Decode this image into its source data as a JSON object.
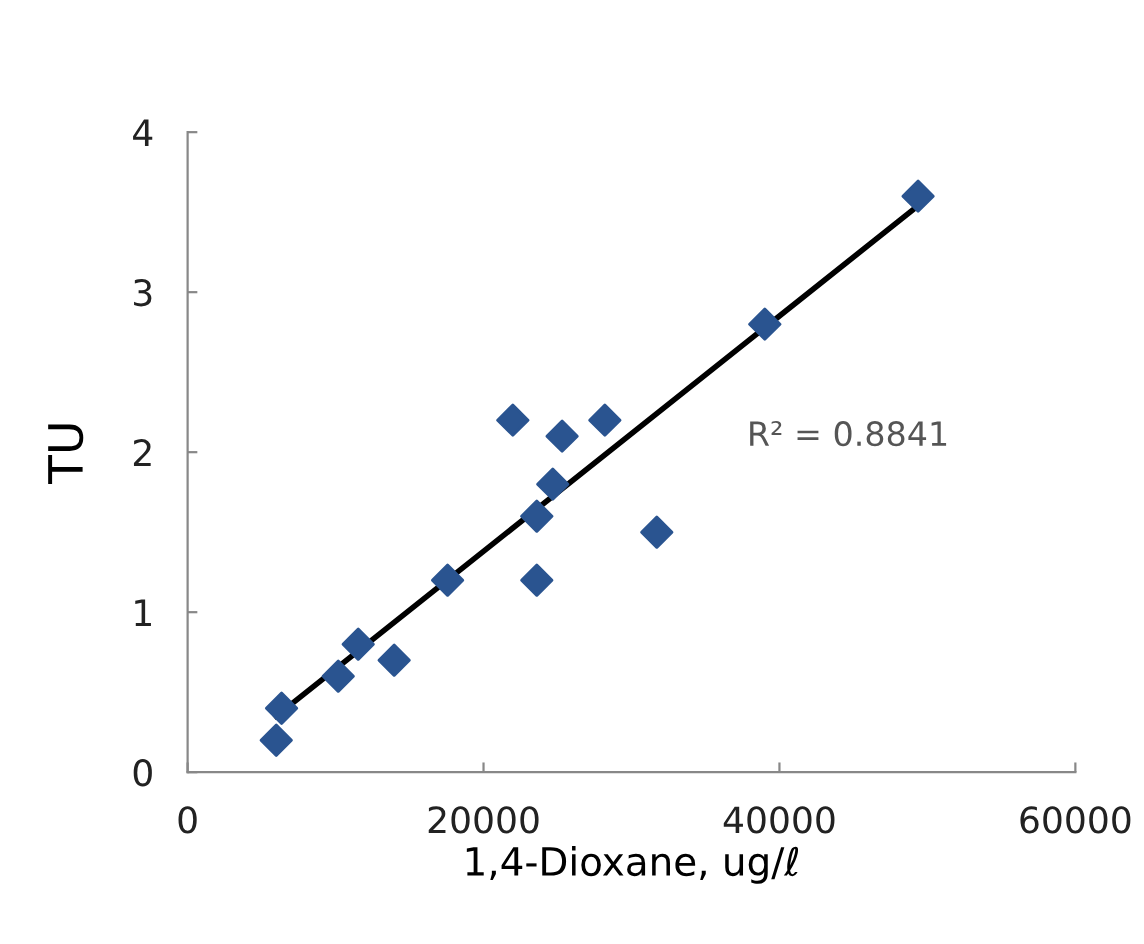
{
  "chart_data": {
    "type": "scatter",
    "xlabel": "1,4-Dioxane, ug/ℓ",
    "ylabel": "TU",
    "x": [
      5990,
      6350,
      10180,
      11530,
      13960,
      17570,
      21980,
      23600,
      23600,
      24680,
      25310,
      28200,
      31710,
      39010,
      49370
    ],
    "series": [
      {
        "color": "#2a5490",
        "marker": "diamond",
        "values": [
          0.2,
          0.4,
          0.6,
          0.8,
          0.7,
          1.2,
          2.2,
          1.6,
          1.2,
          1.8,
          2.1,
          2.2,
          1.5,
          2.8,
          3.6
        ]
      },
      {
        "type": "line",
        "color": "#000000",
        "marker": "none",
        "x": [
          5990,
          49230
        ],
        "values": [
          0.35,
          3.53
        ]
      }
    ],
    "annotations": [
      "R² = 0.8841"
    ],
    "xlim": [
      0,
      60000
    ],
    "ylim": [
      0,
      4
    ],
    "xticks": [
      0,
      20000,
      40000,
      60000
    ],
    "yticks": [
      0,
      1,
      2,
      3,
      4
    ],
    "grid": false,
    "legend": false
  }
}
